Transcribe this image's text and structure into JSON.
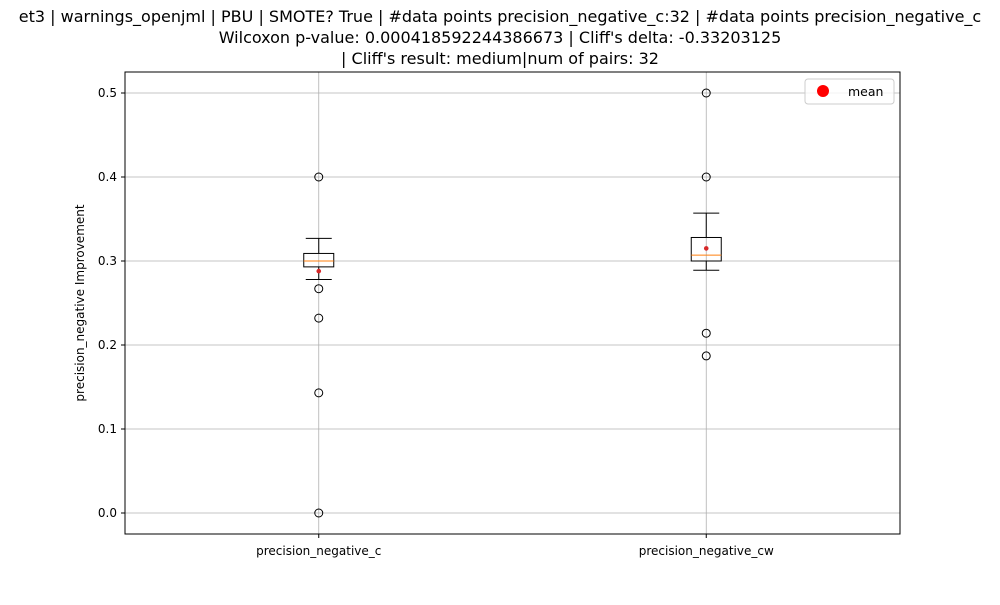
{
  "chart_data": {
    "type": "box",
    "title_lines": [
      "et3 | warnings_openjml | PBU | SMOTE? True | #data points precision_negative_c:32 | #data points precision_negative_c",
      "Wilcoxon p-value: 0.000418592244386673 | Cliff's delta: -0.33203125",
      "| Cliff's result: medium|num of pairs: 32"
    ],
    "xlabel": "",
    "ylabel": "precision_negative Improvement",
    "ylim": [
      -0.025,
      0.525
    ],
    "yticks": [
      0.0,
      0.1,
      0.2,
      0.3,
      0.4,
      0.5
    ],
    "ytick_labels": [
      "0.0",
      "0.1",
      "0.2",
      "0.3",
      "0.4",
      "0.5"
    ],
    "grid": true,
    "legend": {
      "position": "top-right",
      "entries": [
        {
          "label": "mean",
          "color": "#ff0000",
          "marker": "circle"
        }
      ]
    },
    "categories": [
      "precision_negative_c",
      "precision_negative_cw"
    ],
    "boxes": [
      {
        "name": "precision_negative_c",
        "whisker_low": 0.278,
        "q1": 0.293,
        "median": 0.3,
        "q3": 0.309,
        "whisker_high": 0.327,
        "mean": 0.288,
        "outliers": [
          0.4,
          0.267,
          0.232,
          0.143,
          0.0
        ]
      },
      {
        "name": "precision_negative_cw",
        "whisker_low": 0.289,
        "q1": 0.3,
        "median": 0.307,
        "q3": 0.328,
        "whisker_high": 0.357,
        "mean": 0.315,
        "outliers": [
          0.5,
          0.4,
          0.214,
          0.187
        ]
      }
    ],
    "colors": {
      "box": "#000000",
      "median": "#ff7f0e",
      "mean": "#ff0000",
      "mean_small": "#d62728",
      "grid": "#b0b0b0"
    }
  }
}
